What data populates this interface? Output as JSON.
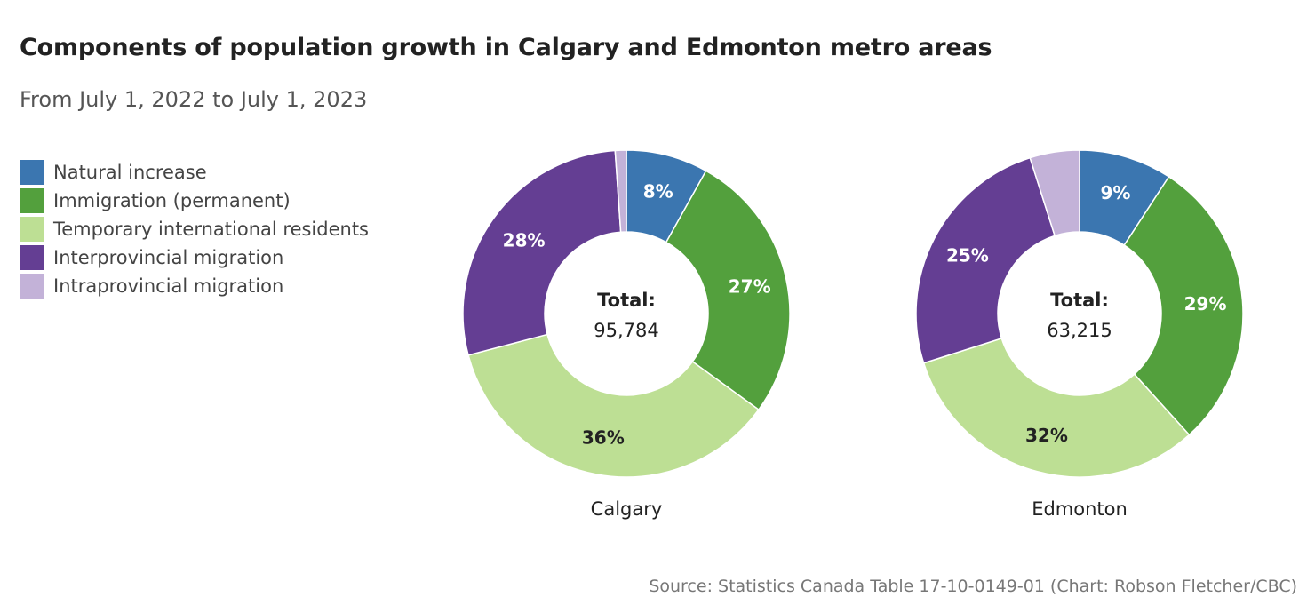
{
  "title": "Components of population growth in Calgary and Edmonton metro areas",
  "subtitle": "From July 1, 2022 to July 1, 2023",
  "source": "Source: Statistics Canada Table 17-10-0149-01 (Chart: Robson Fletcher/CBC)",
  "legend": [
    {
      "label": "Natural increase",
      "color": "#3b76b0"
    },
    {
      "label": "Immigration (permanent)",
      "color": "#53a03d"
    },
    {
      "label": "Temporary international residents",
      "color": "#bddf94"
    },
    {
      "label": "Interprovincial migration",
      "color": "#643e93"
    },
    {
      "label": "Intraprovincial migration",
      "color": "#c3b2d8"
    }
  ],
  "chart_data": [
    {
      "type": "pie",
      "name": "Calgary",
      "total_label": "Total:",
      "total_value": "95,784",
      "categories": [
        "Natural increase",
        "Immigration (permanent)",
        "Temporary international residents",
        "Interprovincial migration",
        "Intraprovincial migration"
      ],
      "values": [
        8.1,
        26.9,
        35.9,
        28.0,
        1.1
      ],
      "labels": [
        "8%",
        "27%",
        "36%",
        "28%",
        ""
      ],
      "label_colors": [
        "#ffffff",
        "#ffffff",
        "#222222",
        "#ffffff",
        "#222222"
      ]
    },
    {
      "type": "pie",
      "name": "Edmonton",
      "total_label": "Total:",
      "total_value": "63,215",
      "categories": [
        "Natural increase",
        "Immigration (permanent)",
        "Temporary international residents",
        "Interprovincial migration",
        "Intraprovincial migration"
      ],
      "values": [
        9.2,
        29.1,
        31.8,
        25.0,
        4.9
      ],
      "labels": [
        "9%",
        "29%",
        "32%",
        "25%",
        ""
      ],
      "label_colors": [
        "#ffffff",
        "#ffffff",
        "#222222",
        "#ffffff",
        "#222222"
      ]
    }
  ]
}
